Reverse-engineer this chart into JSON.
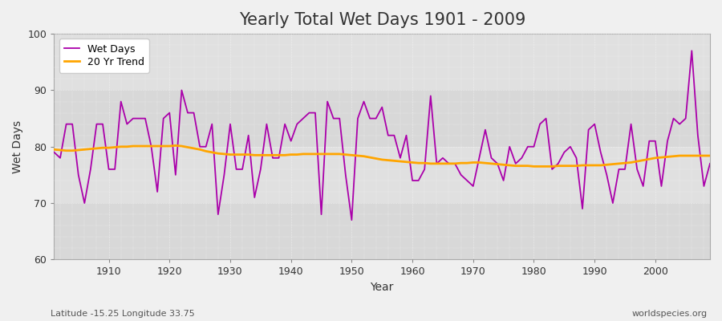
{
  "title": "Yearly Total Wet Days 1901 - 2009",
  "xlabel": "Year",
  "ylabel": "Wet Days",
  "subtitle": "Latitude -15.25 Longitude 33.75",
  "watermark": "worldspecies.org",
  "ylim": [
    60,
    100
  ],
  "xlim": [
    1901,
    2009
  ],
  "yticks": [
    60,
    70,
    80,
    90,
    100
  ],
  "xticks": [
    1910,
    1920,
    1930,
    1940,
    1950,
    1960,
    1970,
    1980,
    1990,
    2000
  ],
  "wet_days_color": "#AA00AA",
  "trend_color": "#FFA500",
  "background_color": "#F0F0F0",
  "plot_bg_color": "#E0E0E0",
  "grid_color": "#FFFFFF",
  "years": [
    1901,
    1902,
    1903,
    1904,
    1905,
    1906,
    1907,
    1908,
    1909,
    1910,
    1911,
    1912,
    1913,
    1914,
    1915,
    1916,
    1917,
    1918,
    1919,
    1920,
    1921,
    1922,
    1923,
    1924,
    1925,
    1926,
    1927,
    1928,
    1929,
    1930,
    1931,
    1932,
    1933,
    1934,
    1935,
    1936,
    1937,
    1938,
    1939,
    1940,
    1941,
    1942,
    1943,
    1944,
    1945,
    1946,
    1947,
    1948,
    1949,
    1950,
    1951,
    1952,
    1953,
    1954,
    1955,
    1956,
    1957,
    1958,
    1959,
    1960,
    1961,
    1962,
    1963,
    1964,
    1965,
    1966,
    1967,
    1968,
    1969,
    1970,
    1971,
    1972,
    1973,
    1974,
    1975,
    1976,
    1977,
    1978,
    1979,
    1980,
    1981,
    1982,
    1983,
    1984,
    1985,
    1986,
    1987,
    1988,
    1989,
    1990,
    1991,
    1992,
    1993,
    1994,
    1995,
    1996,
    1997,
    1998,
    1999,
    2000,
    2001,
    2002,
    2003,
    2004,
    2005,
    2006,
    2007,
    2008,
    2009
  ],
  "wet_days": [
    79,
    78,
    84,
    84,
    75,
    70,
    76,
    84,
    84,
    76,
    76,
    88,
    84,
    85,
    85,
    85,
    80,
    72,
    85,
    86,
    75,
    90,
    86,
    86,
    80,
    80,
    84,
    68,
    75,
    84,
    76,
    76,
    82,
    71,
    76,
    84,
    78,
    78,
    84,
    81,
    84,
    85,
    86,
    86,
    68,
    88,
    85,
    85,
    75,
    67,
    85,
    88,
    85,
    85,
    87,
    82,
    82,
    78,
    82,
    74,
    74,
    76,
    89,
    77,
    78,
    77,
    77,
    75,
    74,
    73,
    78,
    83,
    78,
    77,
    74,
    80,
    77,
    78,
    80,
    80,
    84,
    85,
    76,
    77,
    79,
    80,
    78,
    69,
    83,
    84,
    79,
    75,
    70,
    76,
    76,
    84,
    76,
    73,
    81,
    81,
    73,
    81,
    85,
    84,
    85,
    97,
    82,
    73,
    77
  ],
  "trend": [
    79.5,
    79.4,
    79.3,
    79.3,
    79.4,
    79.5,
    79.6,
    79.7,
    79.8,
    79.8,
    79.9,
    80.0,
    80.0,
    80.1,
    80.1,
    80.1,
    80.1,
    80.1,
    80.1,
    80.1,
    80.2,
    80.1,
    79.9,
    79.7,
    79.5,
    79.2,
    79.0,
    78.8,
    78.7,
    78.6,
    78.6,
    78.6,
    78.6,
    78.5,
    78.5,
    78.5,
    78.5,
    78.5,
    78.5,
    78.6,
    78.6,
    78.7,
    78.7,
    78.7,
    78.7,
    78.7,
    78.7,
    78.7,
    78.6,
    78.5,
    78.4,
    78.3,
    78.1,
    77.9,
    77.7,
    77.6,
    77.5,
    77.4,
    77.3,
    77.2,
    77.1,
    77.1,
    77.0,
    77.0,
    77.0,
    77.0,
    77.0,
    77.1,
    77.1,
    77.2,
    77.2,
    77.1,
    77.0,
    76.9,
    76.8,
    76.7,
    76.6,
    76.6,
    76.6,
    76.5,
    76.5,
    76.5,
    76.5,
    76.6,
    76.6,
    76.6,
    76.6,
    76.7,
    76.7,
    76.7,
    76.7,
    76.8,
    76.9,
    77.0,
    77.1,
    77.2,
    77.4,
    77.6,
    77.8,
    78.0,
    78.1,
    78.2,
    78.3,
    78.4,
    78.4,
    78.4,
    78.4,
    78.4,
    78.4
  ]
}
